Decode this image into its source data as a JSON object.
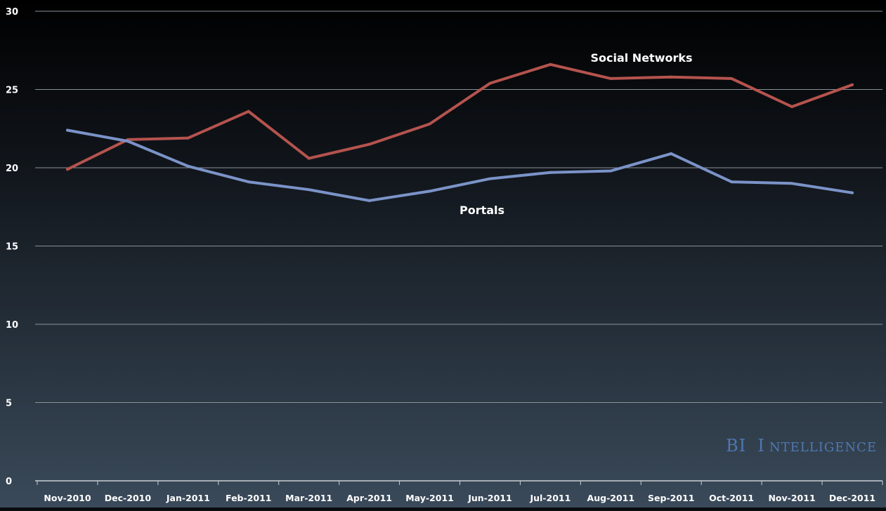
{
  "chart_data": {
    "type": "line",
    "categories": [
      "Nov-2010",
      "Dec-2010",
      "Jan-2011",
      "Feb-2011",
      "Mar-2011",
      "Apr-2011",
      "May-2011",
      "Jun-2011",
      "Jul-2011",
      "Aug-2011",
      "Sep-2011",
      "Oct-2011",
      "Nov-2011",
      "Dec-2011"
    ],
    "series": [
      {
        "name": "Social Networks",
        "color": "#b5534e",
        "values": [
          19.9,
          21.8,
          21.9,
          23.6,
          20.6,
          21.5,
          22.8,
          25.4,
          26.6,
          25.7,
          25.8,
          25.7,
          23.9,
          25.3
        ]
      },
      {
        "name": "Portals",
        "color": "#7b93c8",
        "values": [
          22.4,
          21.7,
          20.1,
          19.1,
          18.6,
          17.9,
          18.5,
          19.3,
          19.7,
          19.8,
          20.9,
          19.1,
          19.0,
          18.4
        ]
      }
    ],
    "ylim": [
      0,
      30
    ],
    "yticks": [
      0,
      5,
      10,
      15,
      20,
      25,
      30
    ],
    "grid": true,
    "title": "",
    "xlabel": "",
    "ylabel": ""
  },
  "watermark": {
    "first": "BI",
    "second_initial": "I",
    "second_rest": "NTELLIGENCE"
  }
}
